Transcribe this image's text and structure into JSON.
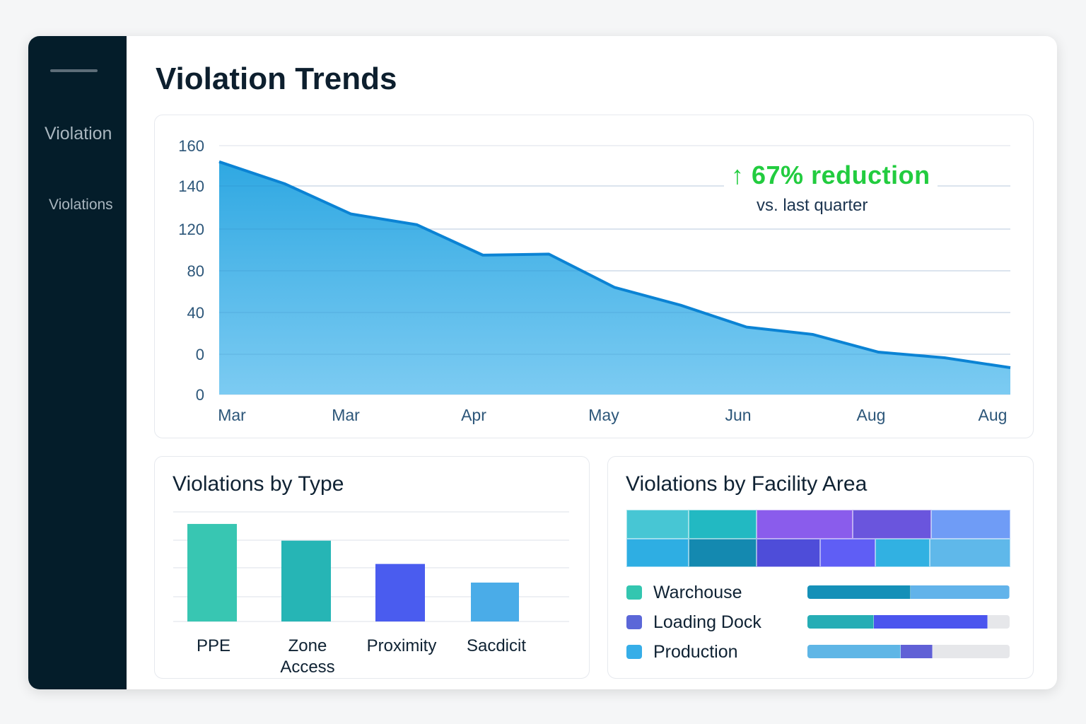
{
  "sidebar": {
    "heading": "Violation",
    "item": "Violations"
  },
  "page_title": "Violation Trends",
  "annotation": {
    "arrow": "↑",
    "headline": "67%  reduction",
    "subtext": "vs. last quarter",
    "color": "#22cc3f"
  },
  "chart_data": [
    {
      "type": "area",
      "y_tick_labels": [
        "160",
        "140",
        "120",
        "80",
        "40",
        "0",
        "0"
      ],
      "x_tick_labels": [
        "Mar",
        "Mar",
        "Apr",
        "May",
        "Jun",
        "Aug",
        "Aug"
      ],
      "values": [
        152,
        141,
        127,
        122,
        95,
        96,
        64,
        47,
        26,
        19,
        2,
        0,
        0
      ],
      "grid": true,
      "fill_color": "#3aaee6",
      "line_color": "#0b83d4"
    },
    {
      "type": "bar",
      "title": "Violations by Type",
      "categories": [
        "PPE",
        "Zone Access",
        "Proximity",
        "Sacdicit"
      ],
      "category_lines": [
        [
          "PPE"
        ],
        [
          "Zone",
          "Access"
        ],
        [
          "Proximity"
        ],
        [
          "Sacdicit"
        ]
      ],
      "values": [
        3.56,
        2.95,
        2.1,
        1.42
      ],
      "ylim": [
        0,
        4
      ],
      "grid": true,
      "colors": [
        "#38c6b2",
        "#26b5b5",
        "#4a5cef",
        "#4aace8"
      ]
    },
    {
      "type": "treemap",
      "title": "Violations by Facility Area",
      "rows": [
        [
          "#47c6d4",
          "#22b9c2",
          "#8a5cec",
          "#6a55dd",
          "#6f9cf6"
        ],
        [
          "#2eaee3",
          "#1489b0",
          "#4e4dd9",
          "#5f5ef5",
          "#31b1e2",
          "#5fb8ea"
        ]
      ],
      "legend": [
        {
          "label": "Warchouse",
          "color": "#33c6b0",
          "segments": [
            {
              "value": 51,
              "color": "#1590b8"
            },
            {
              "value": 49,
              "color": "#62b3ea"
            }
          ]
        },
        {
          "label": "Loading Dock",
          "color": "#5b67d8",
          "segments": [
            {
              "value": 33,
              "color": "#26adb5"
            },
            {
              "value": 56,
              "color": "#4b55ee"
            }
          ]
        },
        {
          "label": "Production",
          "color": "#36aee8",
          "segments": [
            {
              "value": 46,
              "color": "#5fb6e6"
            },
            {
              "value": 16,
              "color": "#6060d6"
            }
          ]
        }
      ]
    }
  ]
}
